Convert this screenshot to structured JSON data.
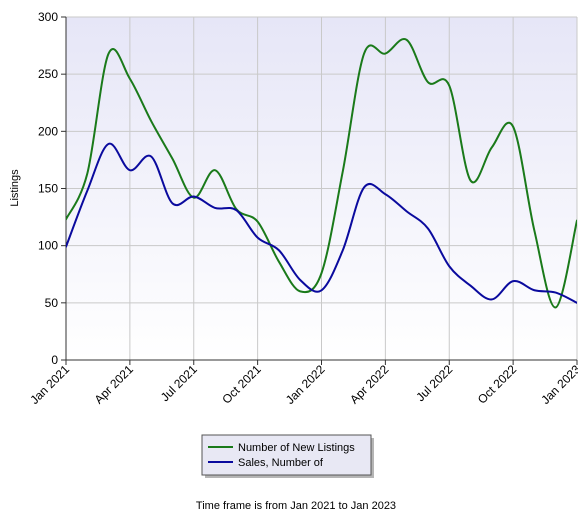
{
  "chart_data": {
    "type": "line",
    "ylabel": "Listings",
    "ylim": [
      0,
      300
    ],
    "yticks": [
      0,
      50,
      100,
      150,
      200,
      250,
      300
    ],
    "x_ticks": [
      "Jan 2021",
      "Apr 2021",
      "Jul 2021",
      "Oct 2021",
      "Jan 2022",
      "Apr 2022",
      "Jul 2022",
      "Oct 2022",
      "Jan 2023"
    ],
    "x": [
      "Jan 2021",
      "Feb 2021",
      "Mar 2021",
      "Apr 2021",
      "May 2021",
      "Jun 2021",
      "Jul 2021",
      "Aug 2021",
      "Sep 2021",
      "Oct 2021",
      "Nov 2021",
      "Dec 2021",
      "Jan 2022",
      "Feb 2022",
      "Mar 2022",
      "Apr 2022",
      "May 2022",
      "Jun 2022",
      "Jul 2022",
      "Aug 2022",
      "Sep 2022",
      "Oct 2022",
      "Nov 2022",
      "Dec 2022",
      "Jan 2023"
    ],
    "series": [
      {
        "name": "Number of New Listings",
        "color": "#1a7a1a",
        "values": [
          123,
          163,
          268,
          246,
          209,
          176,
          142,
          166,
          132,
          121,
          86,
          60,
          76,
          165,
          268,
          268,
          280,
          243,
          240,
          157,
          186,
          204,
          113,
          46,
          122
        ]
      },
      {
        "name": "Sales, Number of",
        "color": "#0a0a9e",
        "values": [
          99,
          148,
          189,
          166,
          178,
          137,
          143,
          133,
          131,
          107,
          96,
          70,
          61,
          96,
          151,
          145,
          130,
          115,
          82,
          65,
          53,
          69,
          61,
          59,
          50
        ]
      }
    ],
    "grid": true,
    "legend_position": "bottom"
  },
  "footer": {
    "timeframe": "Time frame is from Jan 2021 to Jan 2023"
  },
  "colors": {
    "plot_background_top": "#e6e6f7",
    "plot_background_bottom": "#ffffff",
    "grid": "#c9c9c9"
  }
}
